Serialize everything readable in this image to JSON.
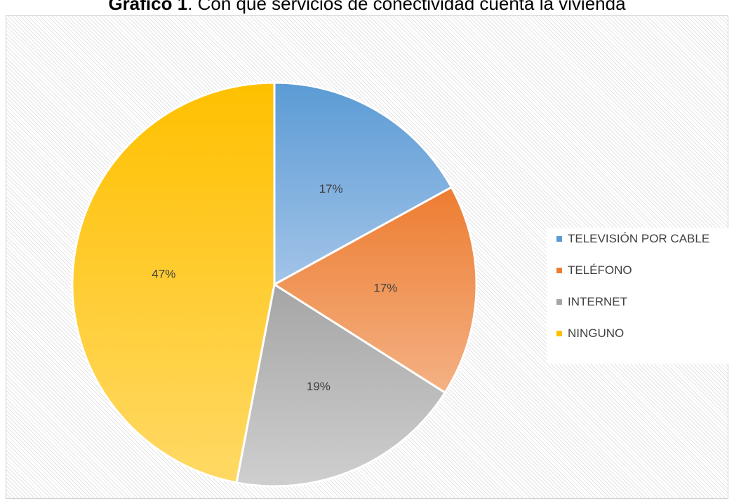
{
  "chart_data": {
    "type": "pie",
    "title_bold": "Gráfico 1",
    "title_rest": ". Con qué servicios de conectividad cuenta la vivienda",
    "categories": [
      "TELEVISIÓN POR CABLE",
      "TELÉFONO",
      "INTERNET",
      "NINGUNO"
    ],
    "values": [
      17,
      17,
      19,
      47
    ],
    "data_labels": [
      "17%",
      "17%",
      "19%",
      "47%"
    ],
    "legend_position": "right",
    "colors": [
      "#5b9bd5",
      "#ed7d31",
      "#a5a5a5",
      "#ffc000"
    ],
    "gradients": [
      [
        "#5b9bd5",
        "#a3c4e8"
      ],
      [
        "#ed7d31",
        "#f4b184"
      ],
      [
        "#a5a5a5",
        "#cfcfcf"
      ],
      [
        "#ffc000",
        "#ffd965"
      ]
    ]
  }
}
